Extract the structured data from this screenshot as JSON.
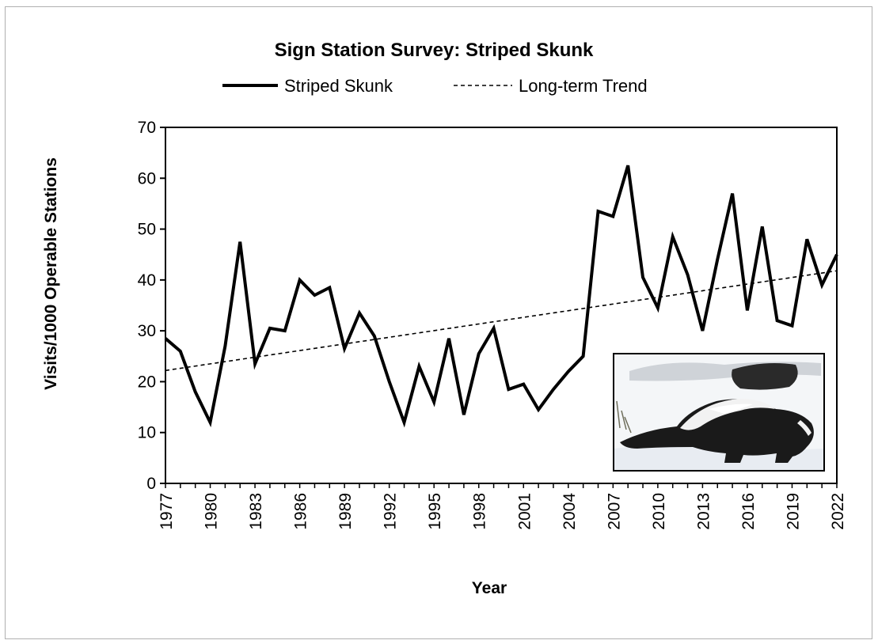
{
  "chart_data": {
    "type": "line",
    "title": "Sign Station Survey: Striped Skunk",
    "xlabel": "Year",
    "ylabel": "Visits/1000 Operable Stations",
    "ylim": [
      0,
      70
    ],
    "yticks": [
      0,
      10,
      20,
      30,
      40,
      50,
      60,
      70
    ],
    "xlim": [
      1977,
      2022
    ],
    "xticks": [
      1977,
      1980,
      1983,
      1986,
      1989,
      1992,
      1995,
      1998,
      2001,
      2004,
      2007,
      2010,
      2013,
      2016,
      2019,
      2022
    ],
    "legend_position": "top",
    "grid": false,
    "series": [
      {
        "name": "Striped Skunk",
        "style": "solid",
        "color": "#000000",
        "x": [
          1977,
          1978,
          1979,
          1980,
          1981,
          1982,
          1983,
          1984,
          1985,
          1986,
          1987,
          1988,
          1989,
          1990,
          1991,
          1992,
          1993,
          1994,
          1995,
          1996,
          1997,
          1998,
          1999,
          2000,
          2001,
          2002,
          2003,
          2004,
          2005,
          2006,
          2007,
          2008,
          2009,
          2010,
          2011,
          2012,
          2013,
          2014,
          2015,
          2016,
          2017,
          2018,
          2019,
          2020,
          2021,
          2022
        ],
        "y": [
          28.5,
          26,
          18,
          12,
          27,
          47.5,
          23.5,
          30.5,
          30,
          40,
          37,
          38.5,
          26.5,
          33.5,
          29,
          20,
          12,
          23,
          16,
          28.5,
          13.5,
          25.5,
          30.5,
          18.5,
          19.5,
          14.5,
          18.5,
          22,
          25,
          53.5,
          52.5,
          62.5,
          40.5,
          34.5,
          48.5,
          41,
          30,
          44,
          57,
          34,
          50.5,
          32,
          31,
          48,
          39,
          45
        ]
      },
      {
        "name": "Long-term Trend",
        "style": "dashed",
        "color": "#000000",
        "x": [
          1977,
          2022
        ],
        "y": [
          22.2,
          41.8
        ]
      }
    ]
  },
  "inset_photo": {
    "icon": "striped-skunk-photo",
    "bg_color": "#ffffff",
    "animal_color": "#1a1a1a",
    "stripe_color": "#f2f2f2"
  }
}
